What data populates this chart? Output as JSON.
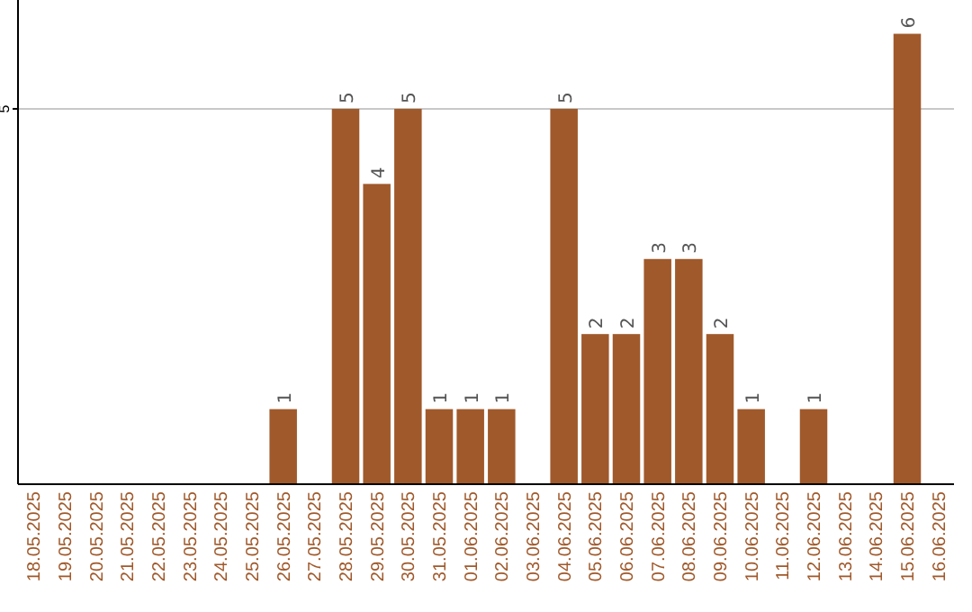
{
  "chart_data": {
    "type": "bar",
    "categories": [
      "18.05.2025",
      "19.05.2025",
      "20.05.2025",
      "21.05.2025",
      "22.05.2025",
      "23.05.2025",
      "24.05.2025",
      "25.05.2025",
      "26.05.2025",
      "27.05.2025",
      "28.05.2025",
      "29.05.2025",
      "30.05.2025",
      "31.05.2025",
      "01.06.2025",
      "02.06.2025",
      "03.06.2025",
      "04.06.2025",
      "05.06.2025",
      "06.06.2025",
      "07.06.2025",
      "08.06.2025",
      "09.06.2025",
      "10.06.2025",
      "11.06.2025",
      "12.06.2025",
      "13.06.2025",
      "14.06.2025",
      "15.06.2025",
      "16.06.2025"
    ],
    "values": [
      0,
      0,
      0,
      0,
      0,
      0,
      0,
      0,
      1,
      0,
      5,
      4,
      5,
      1,
      1,
      1,
      0,
      5,
      2,
      2,
      3,
      3,
      2,
      1,
      0,
      1,
      0,
      0,
      6,
      0
    ],
    "value_labels": [
      null,
      null,
      null,
      null,
      null,
      null,
      null,
      null,
      "1",
      null,
      "5",
      "4",
      "5",
      "1",
      "1",
      "1",
      null,
      "5",
      "2",
      "2",
      "3",
      "3",
      "2",
      "1",
      null,
      "1",
      null,
      null,
      "6",
      null
    ],
    "color": "#a0592b",
    "ylim": [
      0,
      6.45
    ],
    "yticks": [
      5
    ],
    "grid": "y"
  }
}
